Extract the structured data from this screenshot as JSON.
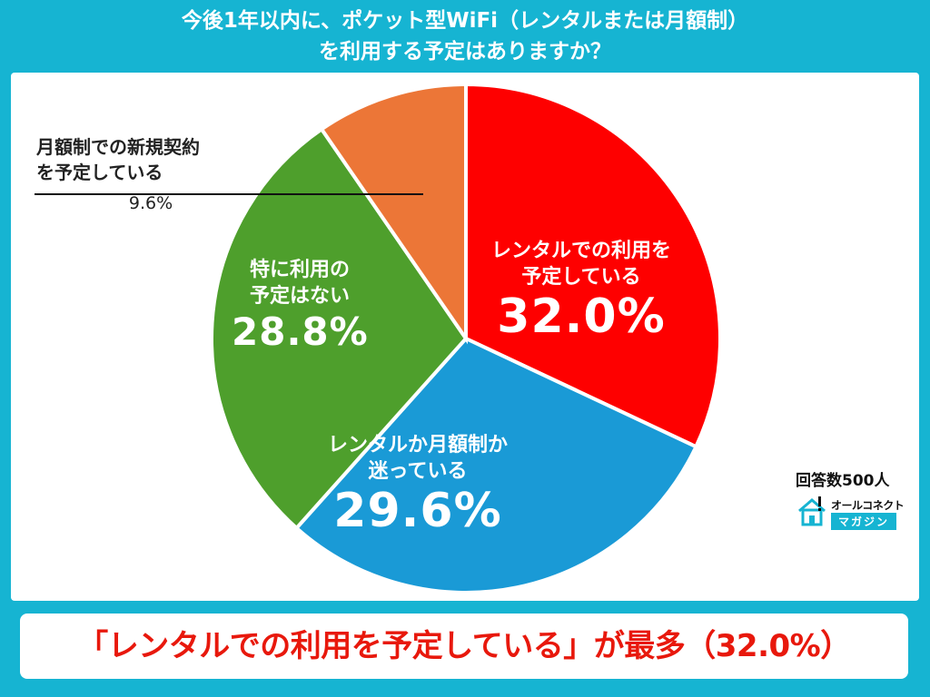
{
  "title": {
    "line1": "今後1年以内に、ポケット型WiFi（レンタルまたは月額制）",
    "line2": "を利用する予定はありますか？"
  },
  "chart_data": {
    "type": "pie",
    "unit": "%",
    "slices": [
      {
        "label_line1": "レンタルでの利用を",
        "label_line2": "予定している",
        "value": 32.0,
        "value_text": "32.0%",
        "color": "#fe0000"
      },
      {
        "label_line1": "レンタルか月額制か",
        "label_line2": "迷っている",
        "value": 29.6,
        "value_text": "29.6%",
        "color": "#1a9ad6"
      },
      {
        "label_line1": "特に利用の",
        "label_line2": "予定はない",
        "value": 28.8,
        "value_text": "28.8%",
        "color": "#4e9f2c"
      },
      {
        "label_line1": "月額制での新規契約",
        "label_line2": "を予定している",
        "value": 9.6,
        "value_text": "9.6%",
        "color": "#ec7637"
      }
    ]
  },
  "sample": "回答数500人",
  "logo": {
    "brand": "オールコネクト",
    "sub": "マガジン"
  },
  "banner": "「レンタルでの利用を予定している」が最多（32.0%）"
}
